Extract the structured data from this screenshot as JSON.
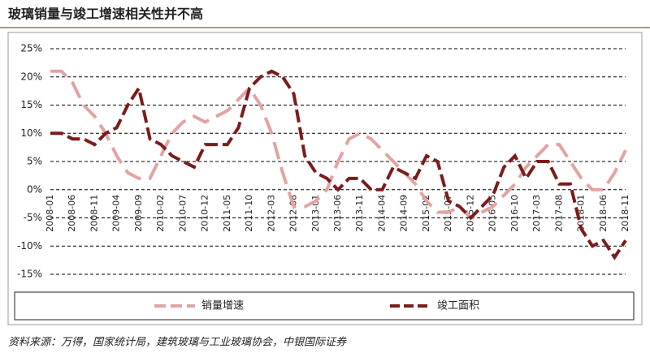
{
  "chart_data": {
    "type": "line",
    "title": "玻璃销量与竣工增速相关性并不高",
    "source": "资料来源：万得，国家统计局，建筑玻璃与工业玻璃协会，中银国际证券",
    "categories": [
      "2008-01",
      null,
      "2008-06",
      null,
      "2008-11",
      null,
      "2009-04",
      null,
      "2009-09",
      null,
      "2010-02",
      null,
      "2010-07",
      null,
      "2010-12",
      null,
      "2011-05",
      null,
      "2011-10",
      null,
      "2012-03",
      null,
      "2012-08",
      null,
      "2013-01",
      null,
      "2013-06",
      null,
      "2013-11",
      null,
      "2014-04",
      null,
      "2014-09",
      null,
      "2015-02",
      null,
      "2015-07",
      null,
      "2015-12",
      null,
      "2016-05",
      null,
      "2016-10",
      null,
      "2017-03",
      null,
      "2017-08",
      null,
      "2018-01",
      null,
      "2018-06",
      null,
      "2018-11"
    ],
    "series": [
      {
        "name": "销量增速",
        "color": "#e3a3a3",
        "values": [
          21,
          21,
          19,
          15,
          13,
          10,
          6,
          3,
          2,
          2,
          6,
          10,
          12,
          13,
          12,
          13,
          14,
          16,
          18,
          15,
          10,
          3,
          -3,
          -3,
          -2,
          0,
          5,
          9,
          10,
          9,
          7,
          5,
          3,
          1,
          -2,
          -4,
          -4,
          -3,
          -5,
          -4,
          -3,
          -1,
          1,
          4,
          6,
          8,
          8,
          5,
          2,
          0,
          0,
          3,
          7
        ]
      },
      {
        "name": "竣工面积",
        "color": "#7b1c1c",
        "values": [
          10,
          10,
          9,
          9,
          8,
          10,
          11,
          15,
          18,
          9,
          8,
          6,
          5,
          4,
          8,
          8,
          8,
          11,
          18,
          20,
          21,
          20,
          17,
          6,
          3,
          2,
          0,
          2,
          2,
          0,
          0,
          4,
          3,
          2,
          6,
          5,
          -2,
          -3,
          -5,
          -3,
          -1,
          4,
          6,
          2,
          5,
          5,
          1,
          1,
          -7,
          -10,
          -9,
          -12,
          -9
        ]
      }
    ],
    "ylim": [
      -15,
      25
    ],
    "yticks": [
      {
        "value": -15,
        "label": "-15%"
      },
      {
        "value": -10,
        "label": "-10%"
      },
      {
        "value": -5,
        "label": "-5%"
      },
      {
        "value": 0,
        "label": "0%"
      },
      {
        "value": 5,
        "label": "5%"
      },
      {
        "value": 10,
        "label": "10%"
      },
      {
        "value": 15,
        "label": "15%"
      },
      {
        "value": 20,
        "label": "20%"
      },
      {
        "value": 25,
        "label": "25%"
      }
    ],
    "grid": true,
    "legend": "bottom"
  }
}
